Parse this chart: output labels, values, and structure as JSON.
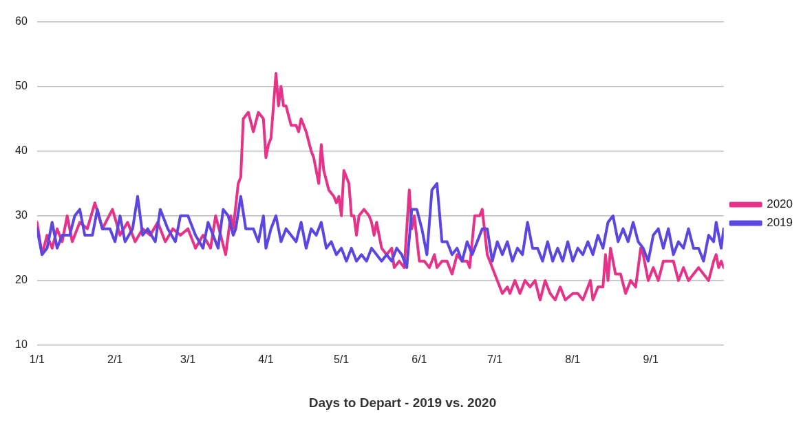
{
  "chart_data": {
    "type": "line",
    "title": "Days to Depart - 2019 vs. 2020",
    "legend": "right",
    "grid": "y",
    "marker": "none",
    "line_style": "solid",
    "xlim": [
      "--01-01",
      "--09-30"
    ],
    "xticks": [
      {
        "value": "--01-01",
        "label": "1/1"
      },
      {
        "value": "--02-01",
        "label": "2/1"
      },
      {
        "value": "--03-01",
        "label": "3/1"
      },
      {
        "value": "--04-01",
        "label": "4/1"
      },
      {
        "value": "--05-01",
        "label": "5/1"
      },
      {
        "value": "--06-01",
        "label": "6/1"
      },
      {
        "value": "--07-01",
        "label": "7/1"
      },
      {
        "value": "--08-01",
        "label": "8/1"
      },
      {
        "value": "--09-01",
        "label": "9/1"
      }
    ],
    "ylim": [
      10,
      60
    ],
    "yticks": [
      10,
      20,
      30,
      40,
      50,
      60
    ],
    "series": [
      {
        "name": "2020",
        "color": "#e5338a",
        "x": [
          "--01-01",
          "--01-03",
          "--01-05",
          "--01-07",
          "--01-09",
          "--01-11",
          "--01-13",
          "--01-15",
          "--01-18",
          "--01-21",
          "--01-24",
          "--01-27",
          "--01-31",
          "--02-03",
          "--02-06",
          "--02-09",
          "--02-12",
          "--02-15",
          "--02-18",
          "--02-21",
          "--02-24",
          "--02-27",
          "--03-01",
          "--03-04",
          "--03-07",
          "--03-10",
          "--03-12",
          "--03-16",
          "--03-18",
          "--03-19",
          "--03-21",
          "--03-22",
          "--03-23",
          "--03-25",
          "--03-27",
          "--03-29",
          "--03-31",
          "--04-01",
          "--04-02",
          "--04-03",
          "--04-05",
          "--04-06",
          "--04-07",
          "--04-08",
          "--04-09",
          "--04-11",
          "--04-13",
          "--04-14",
          "--04-15",
          "--04-17",
          "--04-19",
          "--04-20",
          "--04-22",
          "--04-23",
          "--04-24",
          "--04-26",
          "--04-28",
          "--04-29",
          "--04-30",
          "--05-01",
          "--05-02",
          "--05-04",
          "--05-05",
          "--05-06",
          "--05-07",
          "--05-08",
          "--05-10",
          "--05-12",
          "--05-13",
          "--05-14",
          "--05-15",
          "--05-17",
          "--05-19",
          "--05-21",
          "--05-22",
          "--05-24",
          "--05-26",
          "--05-28",
          "--05-29",
          "--05-30",
          "--06-01",
          "--06-03",
          "--06-05",
          "--06-07",
          "--06-08",
          "--06-10",
          "--06-12",
          "--06-14",
          "--06-16",
          "--06-18",
          "--06-20",
          "--06-21",
          "--06-23",
          "--06-25",
          "--06-26",
          "--06-28",
          "--06-30",
          "--07-02",
          "--07-04",
          "--07-06",
          "--07-07",
          "--07-09",
          "--07-11",
          "--07-13",
          "--07-15",
          "--07-17",
          "--07-19",
          "--07-21",
          "--07-23",
          "--07-25",
          "--07-27",
          "--07-29",
          "--08-01",
          "--08-03",
          "--08-05",
          "--08-08",
          "--08-09",
          "--08-11",
          "--08-13",
          "--08-14",
          "--08-15",
          "--08-16",
          "--08-18",
          "--08-20",
          "--08-22",
          "--08-24",
          "--08-26",
          "--08-28",
          "--08-29",
          "--08-31",
          "--09-02",
          "--09-04",
          "--09-06",
          "--09-10",
          "--09-12",
          "--09-14",
          "--09-16",
          "--09-18",
          "--09-20",
          "--09-24",
          "--09-26",
          "--09-27",
          "--09-28",
          "--09-29",
          "--09-30"
        ],
        "values": [
          29,
          24,
          27,
          25,
          28,
          26,
          30,
          26,
          29,
          28,
          32,
          28,
          31,
          27,
          29,
          26,
          28,
          27,
          29,
          26,
          28,
          27,
          28,
          25,
          27,
          25,
          30,
          24,
          30,
          28,
          35,
          36,
          45,
          46,
          43,
          46,
          45,
          39,
          41,
          42,
          52,
          47,
          50,
          47,
          47,
          44,
          44,
          43,
          45,
          43,
          40,
          39,
          35,
          41,
          37,
          34,
          33,
          32,
          33,
          30,
          37,
          35,
          30,
          30,
          27,
          30,
          31,
          30,
          29,
          27,
          29,
          25,
          24,
          25,
          22,
          23,
          22,
          34,
          28,
          30,
          23,
          23,
          22,
          24,
          22,
          23,
          23,
          21,
          24,
          23,
          23,
          22,
          30,
          30,
          31,
          24,
          22,
          20,
          18,
          19,
          18,
          20,
          18,
          20,
          19,
          20,
          17,
          20,
          18,
          17,
          19,
          17,
          18,
          18,
          17,
          20,
          17,
          19,
          19,
          24,
          20,
          25,
          21,
          21,
          18,
          20,
          19,
          25,
          24,
          20,
          22,
          20,
          23,
          23,
          20,
          22,
          20,
          21,
          22,
          20,
          23,
          24,
          22,
          23,
          22
        ]
      },
      {
        "name": "2019",
        "color": "#5b47e0",
        "x": [
          "--01-01",
          "--01-03",
          "--01-05",
          "--01-07",
          "--01-09",
          "--01-11",
          "--01-14",
          "--01-16",
          "--01-18",
          "--01-20",
          "--01-23",
          "--01-25",
          "--01-27",
          "--01-30",
          "--02-01",
          "--02-03",
          "--02-05",
          "--02-08",
          "--02-10",
          "--02-12",
          "--02-14",
          "--02-17",
          "--02-19",
          "--02-22",
          "--02-25",
          "--02-27",
          "--03-01",
          "--03-04",
          "--03-07",
          "--03-09",
          "--03-11",
          "--03-13",
          "--03-15",
          "--03-17",
          "--03-19",
          "--03-20",
          "--03-22",
          "--03-24",
          "--03-27",
          "--03-29",
          "--03-31",
          "--04-01",
          "--04-03",
          "--04-05",
          "--04-07",
          "--04-09",
          "--04-11",
          "--04-13",
          "--04-15",
          "--04-17",
          "--04-19",
          "--04-21",
          "--04-23",
          "--04-25",
          "--04-27",
          "--04-29",
          "--05-01",
          "--05-03",
          "--05-05",
          "--05-07",
          "--05-09",
          "--05-11",
          "--05-13",
          "--05-15",
          "--05-17",
          "--05-19",
          "--05-21",
          "--05-23",
          "--05-25",
          "--05-27",
          "--05-29",
          "--05-31",
          "--06-02",
          "--06-04",
          "--06-06",
          "--06-08",
          "--06-10",
          "--06-12",
          "--06-14",
          "--06-16",
          "--06-18",
          "--06-20",
          "--06-22",
          "--06-24",
          "--06-26",
          "--06-28",
          "--06-30",
          "--07-02",
          "--07-04",
          "--07-06",
          "--07-08",
          "--07-10",
          "--07-12",
          "--07-14",
          "--07-16",
          "--07-18",
          "--07-20",
          "--07-22",
          "--07-24",
          "--07-26",
          "--07-28",
          "--07-30",
          "--08-01",
          "--08-03",
          "--08-05",
          "--08-07",
          "--08-09",
          "--08-11",
          "--08-13",
          "--08-15",
          "--08-17",
          "--08-19",
          "--08-21",
          "--08-23",
          "--08-25",
          "--08-27",
          "--08-29",
          "--08-31",
          "--09-02",
          "--09-04",
          "--09-06",
          "--09-08",
          "--09-10",
          "--09-12",
          "--09-14",
          "--09-16",
          "--09-18",
          "--09-20",
          "--09-22",
          "--09-24",
          "--09-26",
          "--09-27",
          "--09-29",
          "--09-30"
        ],
        "values": [
          28,
          24,
          25,
          29,
          25,
          27,
          27,
          30,
          31,
          27,
          27,
          31,
          28,
          28,
          26,
          30,
          26,
          28,
          33,
          27,
          28,
          26,
          31,
          28,
          26,
          30,
          30,
          27,
          25,
          29,
          27,
          25,
          31,
          30,
          27,
          28,
          33,
          28,
          28,
          26,
          30,
          25,
          28,
          30,
          26,
          28,
          27,
          26,
          29,
          25,
          28,
          27,
          29,
          25,
          26,
          24,
          25,
          23,
          25,
          23,
          24,
          23,
          25,
          24,
          23,
          24,
          23,
          25,
          24,
          22,
          31,
          31,
          28,
          24,
          34,
          35,
          26,
          26,
          24,
          25,
          23,
          26,
          24,
          26,
          28,
          28,
          23,
          26,
          24,
          26,
          23,
          25,
          24,
          29,
          25,
          25,
          23,
          26,
          23,
          25,
          23,
          26,
          23,
          25,
          24,
          26,
          24,
          27,
          25,
          29,
          30,
          26,
          28,
          26,
          29,
          26,
          25,
          23,
          27,
          28,
          25,
          28,
          24,
          26,
          25,
          28,
          25,
          25,
          23,
          27,
          26,
          29,
          25,
          28
        ]
      }
    ]
  }
}
